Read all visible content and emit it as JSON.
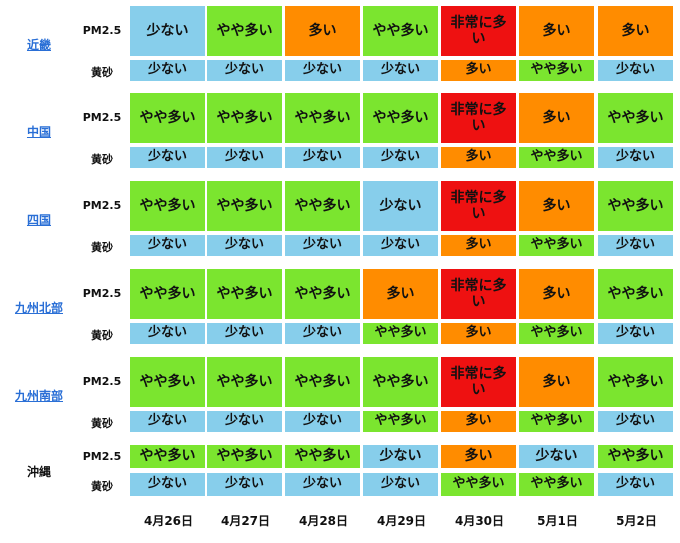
{
  "labels": {
    "pm25": "PM2.5",
    "kosa": "黄砂"
  },
  "dates": [
    "4月26日",
    "4月27日",
    "4月28日",
    "4月29日",
    "4月30日",
    "5月1日",
    "5月2日"
  ],
  "levels": {
    "low": {
      "text": "少ない",
      "color": "#87ceeb"
    },
    "mid": {
      "text": "やや多い",
      "color": "#7be52f"
    },
    "high": {
      "text": "多い",
      "color": "#ff8c00"
    },
    "very_high": {
      "text": "非常に多い",
      "color": "#ee1111"
    }
  },
  "regions": [
    {
      "name": "近畿",
      "link": true,
      "pm25": [
        "low",
        "mid",
        "high",
        "mid",
        "very_high",
        "high",
        "high"
      ],
      "kosa": [
        "low",
        "low",
        "low",
        "low",
        "high",
        "mid",
        "low"
      ]
    },
    {
      "name": "中国",
      "link": true,
      "pm25": [
        "mid",
        "mid",
        "mid",
        "mid",
        "very_high",
        "high",
        "mid"
      ],
      "kosa": [
        "low",
        "low",
        "low",
        "low",
        "high",
        "mid",
        "low"
      ]
    },
    {
      "name": "四国",
      "link": true,
      "pm25": [
        "mid",
        "mid",
        "mid",
        "low",
        "very_high",
        "high",
        "mid"
      ],
      "kosa": [
        "low",
        "low",
        "low",
        "low",
        "high",
        "mid",
        "low"
      ]
    },
    {
      "name": "九州北部",
      "link": true,
      "pm25": [
        "mid",
        "mid",
        "mid",
        "high",
        "very_high",
        "high",
        "mid"
      ],
      "kosa": [
        "low",
        "low",
        "low",
        "mid",
        "high",
        "mid",
        "low"
      ]
    },
    {
      "name": "九州南部",
      "link": true,
      "pm25": [
        "mid",
        "mid",
        "mid",
        "mid",
        "very_high",
        "high",
        "mid"
      ],
      "kosa": [
        "low",
        "low",
        "low",
        "mid",
        "high",
        "mid",
        "low"
      ]
    },
    {
      "name": "沖縄",
      "link": false,
      "pm25": [
        "mid",
        "mid",
        "mid",
        "low",
        "high",
        "low",
        "mid"
      ],
      "kosa": [
        "low",
        "low",
        "low",
        "low",
        "mid",
        "mid",
        "low"
      ]
    }
  ]
}
